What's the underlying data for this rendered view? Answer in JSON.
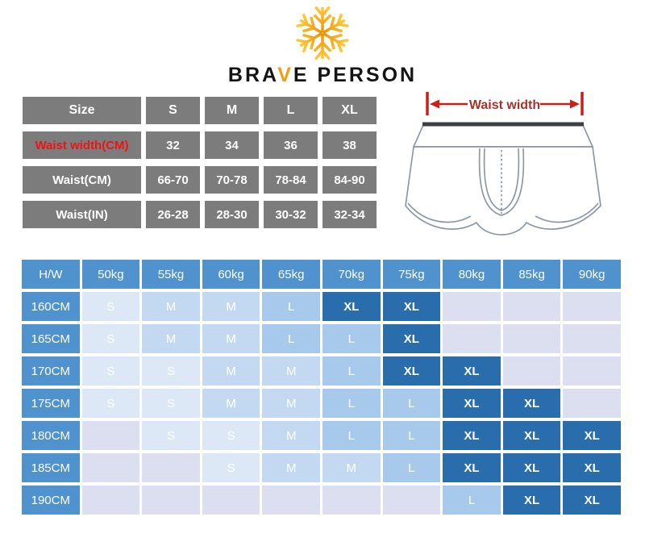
{
  "brand": {
    "part1": "BRA",
    "part2": "V",
    "part3": "E PERSON",
    "accent_color": "#f29d0e",
    "logo_icon": "snowflake-icon"
  },
  "size_table": {
    "rows": [
      {
        "label": "Size",
        "red": false,
        "values": [
          "S",
          "M",
          "L",
          "XL"
        ]
      },
      {
        "label": "Waist width(CM)",
        "red": true,
        "values": [
          "32",
          "34",
          "36",
          "38"
        ]
      },
      {
        "label": "Waist(CM)",
        "red": false,
        "values": [
          "66-70",
          "70-78",
          "78-84",
          "84-90"
        ]
      },
      {
        "label": "Waist(IN)",
        "red": false,
        "values": [
          "26-28",
          "28-30",
          "30-32",
          "32-34"
        ]
      }
    ],
    "cell_color": "#7c7c7c",
    "red_label_color": "#ee1414"
  },
  "diagram": {
    "label": "Waist width",
    "label_color": "#a5332c",
    "arrow_color": "#cf1d18",
    "outline_color": "#8e99a6",
    "waistband_color": "#3b3f44"
  },
  "matrix": {
    "corner": "H/W",
    "col_headers": [
      "50kg",
      "55kg",
      "60kg",
      "65kg",
      "70kg",
      "75kg",
      "80kg",
      "85kg",
      "90kg"
    ],
    "rows": [
      {
        "height": "160CM",
        "cells": [
          "S",
          "M",
          "M",
          "L",
          "XL",
          "XL",
          "",
          "",
          ""
        ]
      },
      {
        "height": "165CM",
        "cells": [
          "S",
          "M",
          "M",
          "L",
          "L",
          "XL",
          "",
          "",
          ""
        ]
      },
      {
        "height": "170CM",
        "cells": [
          "S",
          "S",
          "M",
          "M",
          "L",
          "XL",
          "XL",
          "",
          ""
        ]
      },
      {
        "height": "175CM",
        "cells": [
          "S",
          "S",
          "M",
          "M",
          "L",
          "L",
          "XL",
          "XL",
          ""
        ]
      },
      {
        "height": "180CM",
        "cells": [
          "",
          "S",
          "S",
          "M",
          "L",
          "L",
          "XL",
          "XL",
          "XL"
        ]
      },
      {
        "height": "185CM",
        "cells": [
          "",
          "",
          "S",
          "M",
          "M",
          "L",
          "XL",
          "XL",
          "XL"
        ]
      },
      {
        "height": "190CM",
        "cells": [
          "",
          "",
          "",
          "",
          "",
          "",
          "L",
          "XL",
          "XL"
        ]
      }
    ],
    "header_color": "#4f92cd",
    "cell_colors": {
      "S": "#dce8f6",
      "M": "#c3d8f1",
      "L": "#a7c9eb",
      "XL": "#2a6dad",
      "empty": "#dcdfef"
    }
  }
}
